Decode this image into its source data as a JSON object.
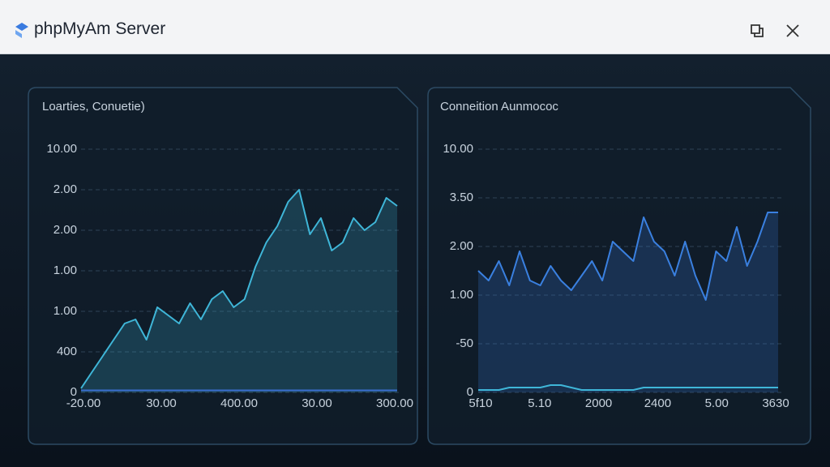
{
  "window": {
    "title": "phpMyAm Server"
  },
  "chart_data": [
    {
      "type": "area",
      "title": "Loarties, Conuetie)",
      "ylim": [
        0,
        6
      ],
      "yticks": [
        {
          "value": 0,
          "label": "0"
        },
        {
          "value": 1,
          "label": "400"
        },
        {
          "value": 2,
          "label": "1.00"
        },
        {
          "value": 3,
          "label": "1.00"
        },
        {
          "value": 4,
          "label": "2.00"
        },
        {
          "value": 5,
          "label": "2.00"
        },
        {
          "value": 6,
          "label": "10.00"
        }
      ],
      "xtick_labels": [
        "-20.00",
        "30.00",
        "400.00",
        "30.00",
        "300.00"
      ],
      "grid": true,
      "series": [
        {
          "color": "#3fb6d8",
          "values": [
            0.1,
            0.5,
            0.9,
            1.3,
            1.7,
            1.8,
            1.3,
            2.1,
            1.9,
            1.7,
            2.2,
            1.8,
            2.3,
            2.5,
            2.1,
            2.3,
            3.1,
            3.7,
            4.1,
            4.7,
            5.0,
            3.9,
            4.3,
            3.5,
            3.7,
            4.3,
            4.0,
            4.2,
            4.8,
            4.6
          ]
        },
        {
          "color": "#3a6fd0",
          "values": [
            0.05,
            0.05,
            0.05,
            0.05,
            0.05,
            0.05,
            0.05,
            0.05,
            0.05,
            0.05,
            0.05,
            0.05,
            0.05,
            0.05,
            0.05,
            0.05,
            0.05,
            0.05,
            0.05,
            0.05,
            0.05,
            0.05,
            0.05,
            0.05,
            0.05,
            0.05,
            0.05,
            0.05,
            0.05,
            0.05
          ]
        }
      ]
    },
    {
      "type": "area",
      "title": "Conneition Aunmococ",
      "ylim": [
        0,
        5
      ],
      "yticks": [
        {
          "value": 0,
          "label": "0"
        },
        {
          "value": 1,
          "label": "-50"
        },
        {
          "value": 2,
          "label": "1.00"
        },
        {
          "value": 3,
          "label": "2.00"
        },
        {
          "value": 4,
          "label": "3.50"
        },
        {
          "value": 5,
          "label": "10.00"
        }
      ],
      "xtick_labels": [
        "5f10",
        "5.10",
        "2000",
        "2400",
        "5.00",
        "3630"
      ],
      "grid": true,
      "series": [
        {
          "color": "#3a80e0",
          "values": [
            2.5,
            2.3,
            2.7,
            2.2,
            2.9,
            2.3,
            2.2,
            2.6,
            2.3,
            2.1,
            2.4,
            2.7,
            2.3,
            3.1,
            2.9,
            2.7,
            3.6,
            3.1,
            2.9,
            2.4,
            3.1,
            2.4,
            1.9,
            2.9,
            2.7,
            3.4,
            2.6,
            3.1,
            3.7,
            3.7
          ]
        },
        {
          "color": "#3fb6d8",
          "values": [
            0.05,
            0.05,
            0.05,
            0.1,
            0.1,
            0.1,
            0.1,
            0.15,
            0.15,
            0.1,
            0.05,
            0.05,
            0.05,
            0.05,
            0.05,
            0.05,
            0.1,
            0.1,
            0.1,
            0.1,
            0.1,
            0.1,
            0.1,
            0.1,
            0.1,
            0.1,
            0.1,
            0.1,
            0.1,
            0.1
          ]
        }
      ]
    }
  ]
}
